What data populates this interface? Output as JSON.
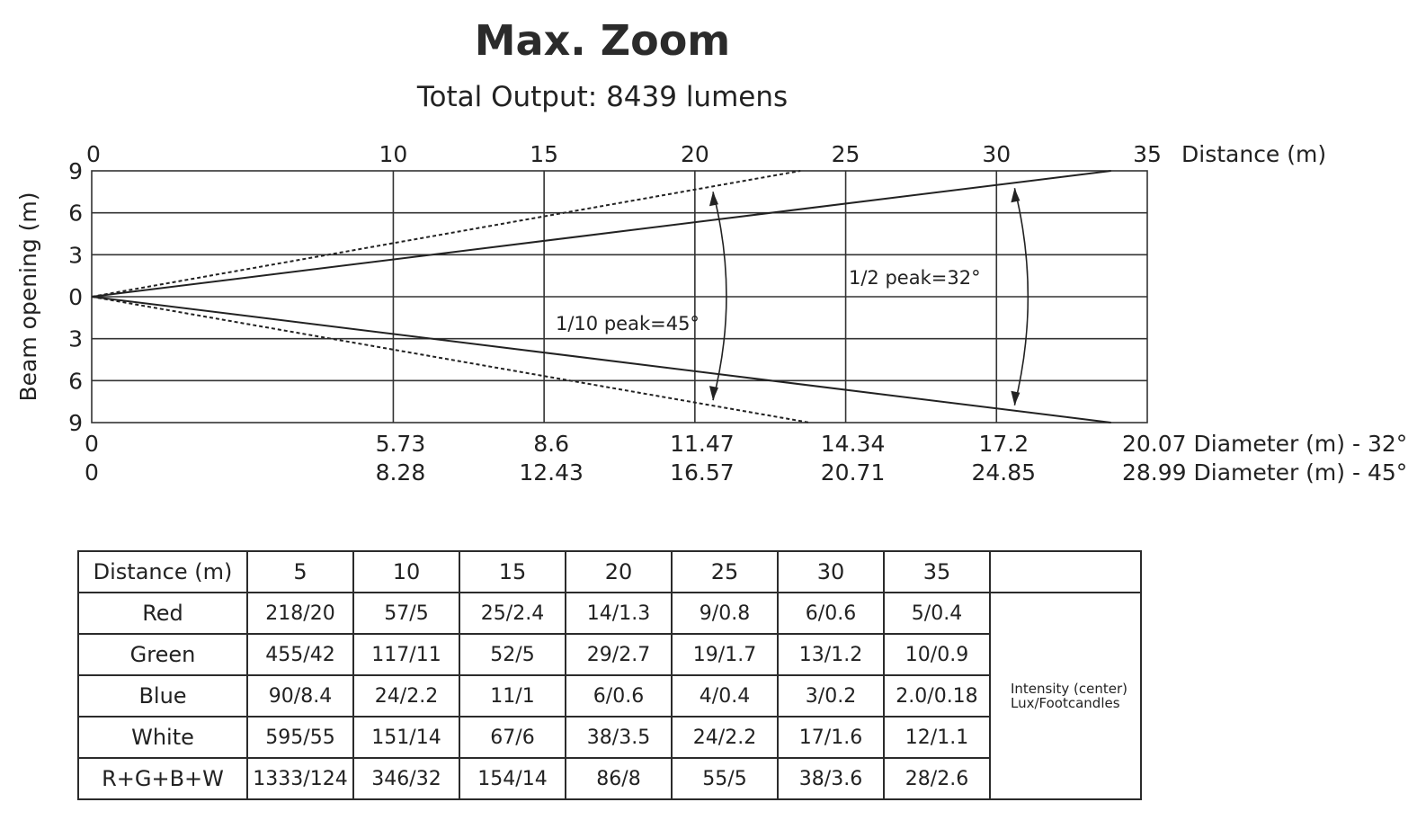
{
  "title": "Max. Zoom",
  "subtitle": "Total Output: 8439 lumens",
  "chart_data": {
    "type": "line",
    "x_axis": {
      "label": "Distance (m)",
      "range": [
        0,
        35
      ],
      "ticks": [
        0,
        10,
        15,
        20,
        25,
        30,
        35
      ],
      "gridlines": [
        10,
        15,
        20,
        25,
        30
      ]
    },
    "y_axis": {
      "label": "Beam opening (m)",
      "range": [
        -9,
        9
      ],
      "ticks": [
        -9,
        -6,
        -3,
        0,
        3,
        6,
        9
      ],
      "tick_labels": [
        "9",
        "6",
        "3",
        "0",
        "3",
        "6",
        "9"
      ]
    },
    "series": [
      {
        "name": "1/2 peak=32°",
        "style": "solid",
        "upper": [
          [
            0,
            0
          ],
          [
            33.8,
            9
          ]
        ],
        "lower": [
          [
            0,
            0
          ],
          [
            33.8,
            -9
          ]
        ],
        "arc_distance": 30
      },
      {
        "name": "1/10 peak=45°",
        "style": "dashed",
        "upper": [
          [
            0,
            0
          ],
          [
            23.5,
            9
          ]
        ],
        "lower": [
          [
            0,
            0
          ],
          [
            23.8,
            -9
          ]
        ],
        "arc_distance": 20
      }
    ],
    "diameter_rows": [
      {
        "label": "Diameter (m) - 32°",
        "values": [
          {
            "distance": 0,
            "value": "0"
          },
          {
            "distance": 10,
            "value": "5.73"
          },
          {
            "distance": 15,
            "value": "8.6"
          },
          {
            "distance": 20,
            "value": "11.47"
          },
          {
            "distance": 25,
            "value": "14.34"
          },
          {
            "distance": 30,
            "value": "17.2"
          },
          {
            "distance": 35,
            "value": "20.07"
          }
        ]
      },
      {
        "label": "Diameter (m) - 45°",
        "values": [
          {
            "distance": 0,
            "value": "0"
          },
          {
            "distance": 10,
            "value": "8.28"
          },
          {
            "distance": 15,
            "value": "12.43"
          },
          {
            "distance": 20,
            "value": "16.57"
          },
          {
            "distance": 25,
            "value": "20.71"
          },
          {
            "distance": 30,
            "value": "24.85"
          },
          {
            "distance": 35,
            "value": "28.99"
          }
        ]
      }
    ]
  },
  "table": {
    "header_label": "Distance (m)",
    "columns": [
      "5",
      "10",
      "15",
      "20",
      "25",
      "30",
      "35"
    ],
    "rows": [
      {
        "label": "Red",
        "values": [
          "218/20",
          "57/5",
          "25/2.4",
          "14/1.3",
          "9/0.8",
          "6/0.6",
          "5/0.4"
        ]
      },
      {
        "label": "Green",
        "values": [
          "455/42",
          "117/11",
          "52/5",
          "29/2.7",
          "19/1.7",
          "13/1.2",
          "10/0.9"
        ]
      },
      {
        "label": "Blue",
        "values": [
          "90/8.4",
          "24/2.2",
          "11/1",
          "6/0.6",
          "4/0.4",
          "3/0.2",
          "2.0/0.18"
        ]
      },
      {
        "label": "White",
        "values": [
          "595/55",
          "151/14",
          "67/6",
          "38/3.5",
          "24/2.2",
          "17/1.6",
          "12/1.1"
        ]
      },
      {
        "label": "R+G+B+W",
        "values": [
          "1333/124",
          "346/32",
          "154/14",
          "86/8",
          "55/5",
          "38/3.6",
          "28/2.6"
        ]
      }
    ],
    "note_line1": "Intensity (center)",
    "note_line2": "Lux/Footcandles"
  }
}
